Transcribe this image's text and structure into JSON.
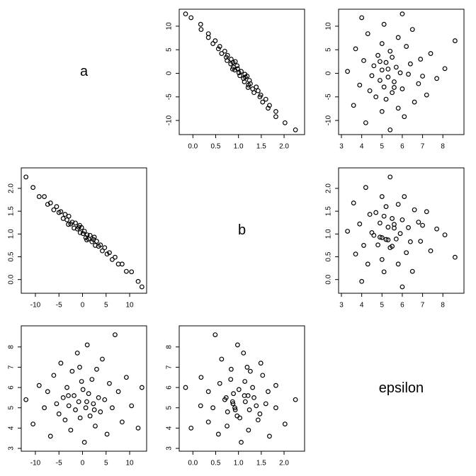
{
  "chart_data": {
    "type": "pairs",
    "variables": [
      {
        "name": "a",
        "lim": [
          -13,
          13.6
        ],
        "ticks": [
          -10,
          -5,
          0,
          5,
          10
        ],
        "values": [
          -12,
          -10.5,
          -9.2,
          -8.1,
          -7.4,
          -6.8,
          -6.1,
          -5.5,
          -5.0,
          -4.6,
          -4.1,
          -3.7,
          -3.3,
          -2.9,
          -2.5,
          -2.2,
          -1.8,
          -1.5,
          -1.1,
          -0.8,
          -0.5,
          -0.2,
          0.1,
          0.4,
          0.7,
          1.0,
          1.3,
          1.6,
          2.0,
          2.3,
          2.7,
          3.0,
          3.4,
          3.8,
          4.2,
          4.7,
          5.2,
          5.7,
          6.3,
          6.9,
          7.6,
          8.4,
          9.3,
          10.4,
          11.8,
          12.6,
          -3.0,
          2.5,
          -0.6,
          0.9
        ]
      },
      {
        "name": "b",
        "lim": [
          -0.3,
          2.45
        ],
        "ticks": [
          {
            "value": 0,
            "label": "0.0"
          },
          0.5,
          {
            "value": 1,
            "label": "1.0"
          },
          1.5,
          {
            "value": 2,
            "label": "2.0"
          }
        ],
        "values": [
          2.25,
          2.02,
          1.82,
          1.82,
          1.65,
          1.68,
          1.53,
          1.6,
          1.47,
          1.49,
          1.34,
          1.43,
          1.31,
          1.39,
          1.22,
          1.26,
          1.13,
          1.24,
          1.11,
          1.15,
          1.03,
          1.14,
          1.01,
          1.06,
          0.92,
          0.98,
          0.89,
          0.97,
          0.83,
          0.88,
          0.75,
          0.84,
          0.73,
          0.76,
          0.63,
          0.7,
          0.56,
          0.59,
          0.44,
          0.49,
          0.34,
          0.34,
          0.18,
          0.17,
          -0.04,
          -0.16,
          1.21,
          0.93,
          1.19,
          0.87
        ]
      },
      {
        "name": "epsilon",
        "lim": [
          2.86,
          9.04
        ],
        "ticks": [
          3,
          4,
          5,
          6,
          7,
          8
        ],
        "values": [
          5.4,
          4.2,
          6.1,
          5.0,
          5.8,
          3.6,
          6.6,
          5.2,
          4.7,
          7.2,
          5.5,
          4.4,
          6.0,
          5.1,
          3.9,
          6.8,
          5.6,
          4.9,
          7.7,
          5.3,
          4.5,
          6.3,
          5.9,
          3.3,
          5.0,
          8.1,
          5.7,
          4.6,
          6.4,
          5.2,
          4.1,
          6.9,
          5.5,
          4.8,
          7.4,
          5.4,
          3.7,
          6.2,
          5.0,
          8.6,
          5.8,
          4.3,
          6.5,
          5.1,
          4.0,
          6.0,
          5.6,
          4.9,
          7.0,
          5.3
        ]
      }
    ]
  }
}
